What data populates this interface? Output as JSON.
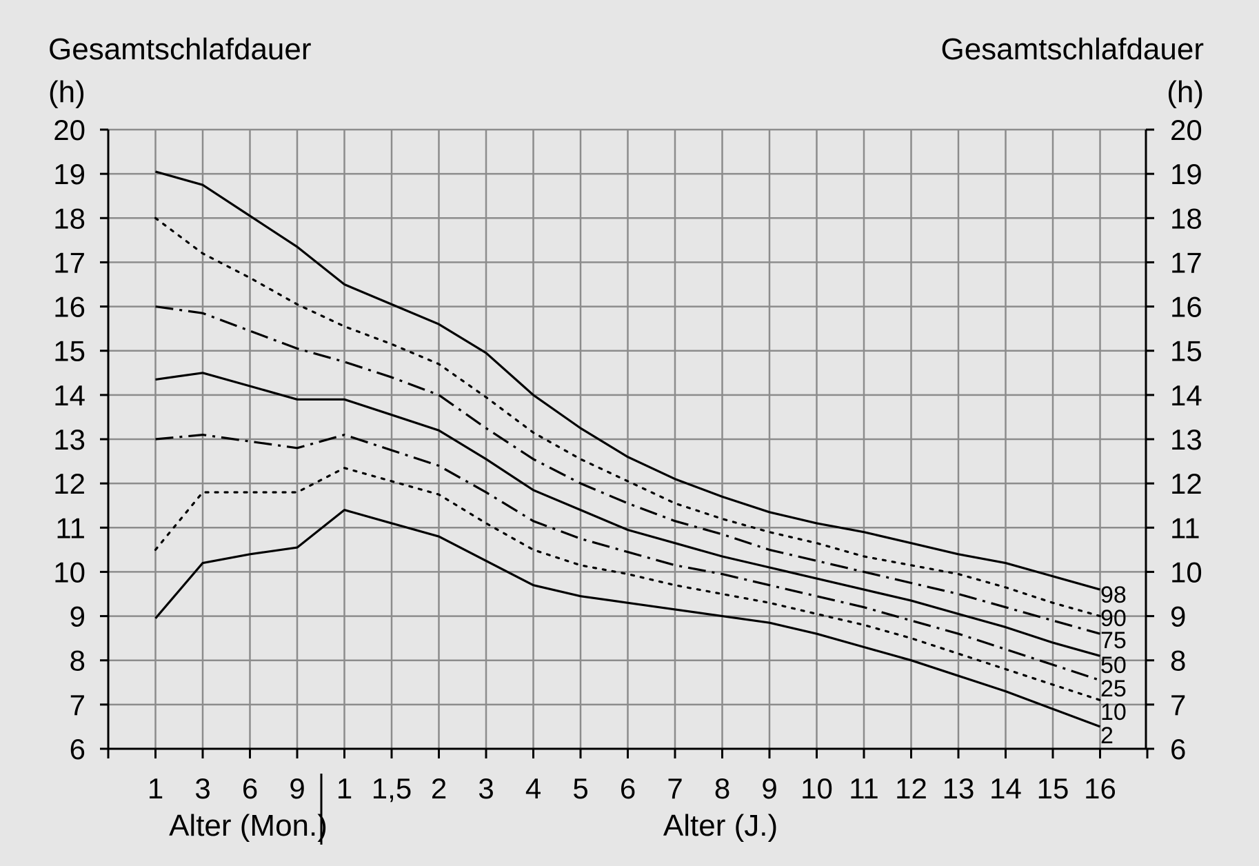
{
  "chart_data": {
    "type": "line",
    "y_label_left": [
      "Gesamtschlafdauer",
      "(h)"
    ],
    "y_label_right": [
      "Gesamtschlafdauer",
      "(h)"
    ],
    "ylim": [
      6,
      20
    ],
    "y_ticks": [
      6,
      7,
      8,
      9,
      10,
      11,
      12,
      13,
      14,
      15,
      16,
      17,
      18,
      19,
      20
    ],
    "x_ticks": [
      "1",
      "3",
      "6",
      "9",
      "1",
      "1,5",
      "2",
      "3",
      "4",
      "5",
      "6",
      "7",
      "8",
      "9",
      "10",
      "11",
      "12",
      "13",
      "14",
      "15",
      "16"
    ],
    "x_label_months": "Alter (Mon.)",
    "x_label_years": "Alter (J.)",
    "grid": true,
    "series": [
      {
        "name": "98",
        "style": "solid",
        "values": [
          19.05,
          18.75,
          18.05,
          17.35,
          16.5,
          16.05,
          15.6,
          14.95,
          14.0,
          13.25,
          12.6,
          12.1,
          11.7,
          11.35,
          11.1,
          10.9,
          10.65,
          10.4,
          10.2,
          9.9,
          9.6
        ]
      },
      {
        "name": "90",
        "style": "dotted",
        "values": [
          18.0,
          17.2,
          16.65,
          16.05,
          15.55,
          15.15,
          14.7,
          13.95,
          13.15,
          12.55,
          12.05,
          11.55,
          11.2,
          10.9,
          10.65,
          10.35,
          10.15,
          9.95,
          9.65,
          9.3,
          9.0
        ]
      },
      {
        "name": "75",
        "style": "dashdot",
        "values": [
          16.0,
          15.85,
          15.45,
          15.05,
          14.75,
          14.4,
          14.0,
          13.25,
          12.55,
          12.0,
          11.55,
          11.15,
          10.85,
          10.5,
          10.25,
          10.0,
          9.75,
          9.5,
          9.2,
          8.9,
          8.6
        ]
      },
      {
        "name": "50",
        "style": "solid",
        "values": [
          14.35,
          14.5,
          14.2,
          13.9,
          13.9,
          13.55,
          13.2,
          12.55,
          11.85,
          11.4,
          10.95,
          10.65,
          10.35,
          10.1,
          9.85,
          9.6,
          9.35,
          9.05,
          8.75,
          8.4,
          8.1
        ]
      },
      {
        "name": "25",
        "style": "dashdot",
        "values": [
          13.0,
          13.1,
          12.95,
          12.8,
          13.1,
          12.75,
          12.4,
          11.8,
          11.15,
          10.75,
          10.45,
          10.15,
          9.95,
          9.7,
          9.45,
          9.2,
          8.9,
          8.6,
          8.25,
          7.9,
          7.55
        ]
      },
      {
        "name": "10",
        "style": "dotted",
        "values": [
          10.5,
          11.8,
          11.8,
          11.8,
          12.35,
          12.05,
          11.75,
          11.1,
          10.5,
          10.15,
          9.95,
          9.7,
          9.5,
          9.3,
          9.05,
          8.8,
          8.5,
          8.15,
          7.8,
          7.45,
          7.1
        ]
      },
      {
        "name": "2",
        "style": "solid",
        "values": [
          8.95,
          10.2,
          10.4,
          10.55,
          11.4,
          11.1,
          10.8,
          10.25,
          9.7,
          9.45,
          9.3,
          9.15,
          9.0,
          8.85,
          8.6,
          8.3,
          8.0,
          7.65,
          7.3,
          6.9,
          6.5
        ]
      }
    ]
  }
}
